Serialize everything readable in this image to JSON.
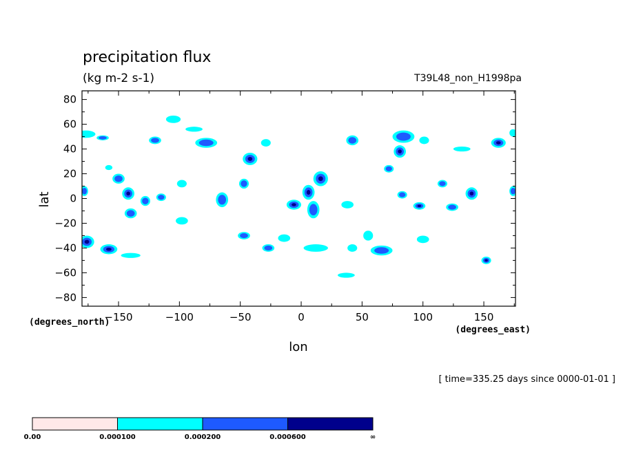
{
  "chart_data": {
    "type": "heatmap",
    "title": "precipitation flux",
    "units": "(kg m-2 s-1)",
    "run_label": "T39L48_non_H1998pa",
    "xlabel": "lon",
    "ylabel": "lat",
    "x_units": "(degrees_east)",
    "y_units": "(degrees_north)",
    "xlim": [
      -180,
      176
    ],
    "ylim": [
      -87,
      87
    ],
    "x_ticks": [
      -150,
      -100,
      -50,
      0,
      50,
      100,
      150
    ],
    "x_tick_labels": [
      "−150",
      "−100",
      "−50",
      "0",
      "50",
      "100",
      "150"
    ],
    "y_ticks": [
      80,
      60,
      40,
      20,
      0,
      -20,
      -40,
      -60,
      -80
    ],
    "y_tick_labels": [
      "80",
      "60",
      "40",
      "20",
      "0",
      "−20",
      "−40",
      "−60",
      "−80"
    ],
    "time_label": "[ time=335.25 days since 0000-01-01 ]",
    "levels": [
      0.0,
      0.0001,
      0.0002,
      0.0006
    ],
    "colorbar": {
      "colors": [
        "#ffe8e8",
        "#00ffff",
        "#1e5aff",
        "#00008c"
      ],
      "labels": [
        "0.00",
        "0.000100",
        "0.000200",
        "0.000600",
        "∞"
      ]
    },
    "cells": [
      {
        "lon": -177,
        "lat": 52,
        "level": 1,
        "rx": 8,
        "ry": 3
      },
      {
        "lon": -163,
        "lat": 49,
        "level": 2,
        "rx": 5,
        "ry": 2
      },
      {
        "lon": -158,
        "lat": 25,
        "level": 1,
        "rx": 3,
        "ry": 2
      },
      {
        "lon": -150,
        "lat": 16,
        "level": 2,
        "rx": 5,
        "ry": 4
      },
      {
        "lon": -142,
        "lat": 4,
        "level": 3,
        "rx": 5,
        "ry": 5
      },
      {
        "lon": -140,
        "lat": -12,
        "level": 2,
        "rx": 5,
        "ry": 4
      },
      {
        "lon": -128,
        "lat": -2,
        "level": 2,
        "rx": 4,
        "ry": 4
      },
      {
        "lon": -115,
        "lat": 1,
        "level": 2,
        "rx": 4,
        "ry": 3
      },
      {
        "lon": -120,
        "lat": 47,
        "level": 2,
        "rx": 5,
        "ry": 3
      },
      {
        "lon": -105,
        "lat": 64,
        "level": 1,
        "rx": 6,
        "ry": 3
      },
      {
        "lon": -98,
        "lat": 12,
        "level": 1,
        "rx": 4,
        "ry": 3
      },
      {
        "lon": -98,
        "lat": -18,
        "level": 1,
        "rx": 5,
        "ry": 3
      },
      {
        "lon": -78,
        "lat": 45,
        "level": 2,
        "rx": 9,
        "ry": 4
      },
      {
        "lon": -88,
        "lat": 56,
        "level": 1,
        "rx": 7,
        "ry": 2
      },
      {
        "lon": -65,
        "lat": -1,
        "level": 2,
        "rx": 5,
        "ry": 6
      },
      {
        "lon": -47,
        "lat": 12,
        "level": 2,
        "rx": 4,
        "ry": 4
      },
      {
        "lon": -42,
        "lat": 32,
        "level": 3,
        "rx": 6,
        "ry": 5
      },
      {
        "lon": -47,
        "lat": -30,
        "level": 2,
        "rx": 5,
        "ry": 3
      },
      {
        "lon": -27,
        "lat": -40,
        "level": 2,
        "rx": 5,
        "ry": 3
      },
      {
        "lon": -14,
        "lat": -32,
        "level": 1,
        "rx": 5,
        "ry": 3
      },
      {
        "lon": -29,
        "lat": 45,
        "level": 1,
        "rx": 4,
        "ry": 3
      },
      {
        "lon": -6,
        "lat": -5,
        "level": 3,
        "rx": 6,
        "ry": 4
      },
      {
        "lon": 6,
        "lat": 5,
        "level": 3,
        "rx": 5,
        "ry": 6
      },
      {
        "lon": 16,
        "lat": 16,
        "level": 3,
        "rx": 6,
        "ry": 6
      },
      {
        "lon": 10,
        "lat": -9,
        "level": 2,
        "rx": 5,
        "ry": 7
      },
      {
        "lon": 12,
        "lat": -40,
        "level": 1,
        "rx": 10,
        "ry": 3
      },
      {
        "lon": 42,
        "lat": 47,
        "level": 2,
        "rx": 5,
        "ry": 4
      },
      {
        "lon": 38,
        "lat": -5,
        "level": 1,
        "rx": 5,
        "ry": 3
      },
      {
        "lon": 42,
        "lat": -40,
        "level": 1,
        "rx": 4,
        "ry": 3
      },
      {
        "lon": 37,
        "lat": -62,
        "level": 1,
        "rx": 7,
        "ry": 2
      },
      {
        "lon": 55,
        "lat": -30,
        "level": 1,
        "rx": 4,
        "ry": 4
      },
      {
        "lon": 66,
        "lat": -42,
        "level": 2,
        "rx": 9,
        "ry": 4
      },
      {
        "lon": 72,
        "lat": 24,
        "level": 2,
        "rx": 4,
        "ry": 3
      },
      {
        "lon": 84,
        "lat": 50,
        "level": 2,
        "rx": 9,
        "ry": 5
      },
      {
        "lon": 81,
        "lat": 38,
        "level": 3,
        "rx": 5,
        "ry": 5
      },
      {
        "lon": 83,
        "lat": 3,
        "level": 2,
        "rx": 4,
        "ry": 3
      },
      {
        "lon": 97,
        "lat": -6,
        "level": 3,
        "rx": 5,
        "ry": 3
      },
      {
        "lon": 100,
        "lat": -33,
        "level": 1,
        "rx": 5,
        "ry": 3
      },
      {
        "lon": 101,
        "lat": 47,
        "level": 1,
        "rx": 4,
        "ry": 3
      },
      {
        "lon": 116,
        "lat": 12,
        "level": 2,
        "rx": 4,
        "ry": 3
      },
      {
        "lon": 124,
        "lat": -7,
        "level": 2,
        "rx": 5,
        "ry": 3
      },
      {
        "lon": 140,
        "lat": 4,
        "level": 3,
        "rx": 5,
        "ry": 5
      },
      {
        "lon": 132,
        "lat": 40,
        "level": 1,
        "rx": 7,
        "ry": 2
      },
      {
        "lon": 152,
        "lat": -50,
        "level": 3,
        "rx": 4,
        "ry": 3
      },
      {
        "lon": 162,
        "lat": 45,
        "level": 3,
        "rx": 6,
        "ry": 4
      },
      {
        "lon": 174,
        "lat": 53,
        "level": 1,
        "rx": 3,
        "ry": 3
      },
      {
        "lon": 174,
        "lat": 6,
        "level": 2,
        "rx": 3,
        "ry": 4
      },
      {
        "lon": -178,
        "lat": 6,
        "level": 2,
        "rx": 3,
        "ry": 4
      },
      {
        "lon": -176,
        "lat": -35,
        "level": 3,
        "rx": 6,
        "ry": 5
      },
      {
        "lon": -158,
        "lat": -41,
        "level": 3,
        "rx": 7,
        "ry": 4
      },
      {
        "lon": -140,
        "lat": -46,
        "level": 1,
        "rx": 8,
        "ry": 2
      }
    ]
  }
}
